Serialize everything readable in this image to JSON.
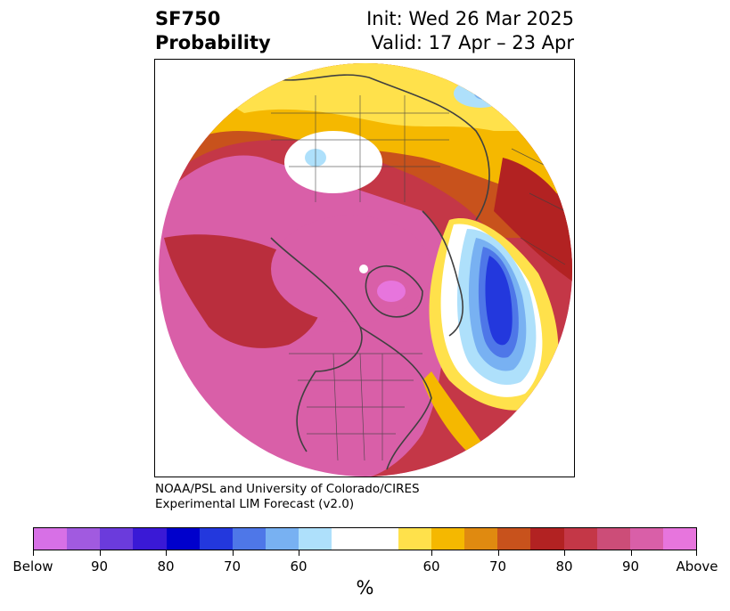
{
  "title": {
    "left_line1": "SF750",
    "left_line2": "Probability",
    "right_line1": "Init: Wed 26 Mar 2025",
    "right_line2": "Valid: 17 Apr – 23 Apr"
  },
  "credit": {
    "line1": "NOAA/PSL and University of Colorado/CIRES",
    "line2": "Experimental LIM Forecast (v2.0)"
  },
  "colorbar": {
    "colors": [
      "#d770e6",
      "#a15ae0",
      "#6b3bdc",
      "#3a19d6",
      "#0000cc",
      "#2338dd",
      "#4e77e8",
      "#78b1f2",
      "#aee0fb",
      "#ffffff",
      "#ffffff",
      "#ffe14b",
      "#f5b800",
      "#e08a10",
      "#c8521c",
      "#b22222",
      "#c43747",
      "#cc4d78",
      "#d95fa8",
      "#e775dd"
    ],
    "tick_labels": [
      "Below",
      "90",
      "80",
      "70",
      "60",
      "60",
      "70",
      "80",
      "90",
      "Above"
    ],
    "unit_label": "%"
  },
  "map": {
    "description_colors": {
      "magenta": "#d95fa8",
      "crimson": "#c43747",
      "darkred": "#b22222",
      "orange": "#c8521c",
      "amber": "#e08a10",
      "gold": "#f5b800",
      "yellow": "#ffe14b",
      "lightblue": "#aee0fb",
      "skyblue": "#78b1f2",
      "blue": "#4e77e8",
      "royal": "#2338dd",
      "pink": "#e775dd"
    }
  }
}
